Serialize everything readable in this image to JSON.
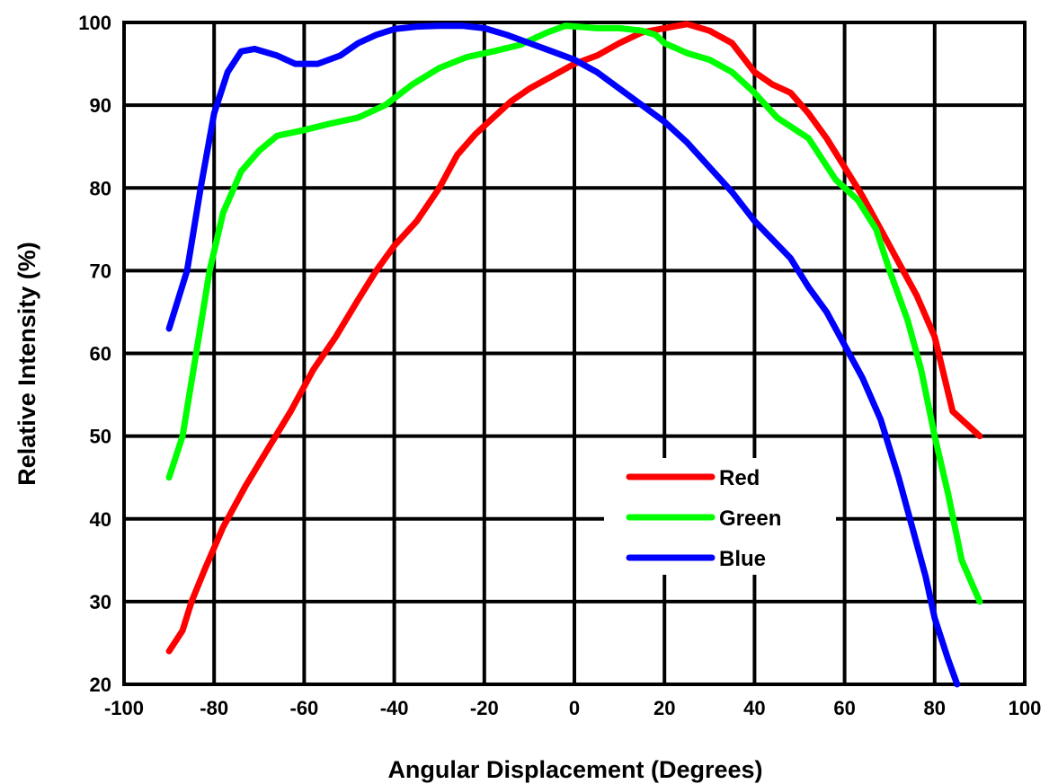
{
  "chart_data": {
    "type": "line",
    "xlabel": "Angular Displacement (Degrees)",
    "ylabel": "Relative Intensity (%)",
    "xlim": [
      -100,
      100
    ],
    "ylim": [
      20,
      100
    ],
    "xticks": [
      "-100",
      "-80",
      "-60",
      "-40",
      "-20",
      "0",
      "20",
      "40",
      "60",
      "80",
      "100"
    ],
    "yticks": [
      "20",
      "30",
      "40",
      "50",
      "60",
      "70",
      "80",
      "90",
      "100"
    ],
    "grid": true,
    "legend_position": "lower-center-right",
    "series": [
      {
        "name": "Red",
        "color": "#ff0000",
        "points": [
          [
            -90,
            24
          ],
          [
            -87,
            26.5
          ],
          [
            -85,
            30
          ],
          [
            -82,
            34
          ],
          [
            -78,
            39
          ],
          [
            -73,
            44
          ],
          [
            -68,
            48.5
          ],
          [
            -63,
            53
          ],
          [
            -58,
            58
          ],
          [
            -53,
            62
          ],
          [
            -48,
            66.5
          ],
          [
            -44,
            70
          ],
          [
            -40,
            73
          ],
          [
            -35,
            76
          ],
          [
            -30,
            80
          ],
          [
            -26,
            84
          ],
          [
            -22,
            86.5
          ],
          [
            -18,
            88.5
          ],
          [
            -14,
            90.5
          ],
          [
            -10,
            92
          ],
          [
            -5,
            93.5
          ],
          [
            0,
            95
          ],
          [
            5,
            96
          ],
          [
            10,
            97.5
          ],
          [
            15,
            98.8
          ],
          [
            20,
            99.3
          ],
          [
            25,
            99.8
          ],
          [
            30,
            99
          ],
          [
            35,
            97.5
          ],
          [
            40,
            94
          ],
          [
            44,
            92.5
          ],
          [
            48,
            91.5
          ],
          [
            52,
            89
          ],
          [
            56,
            86
          ],
          [
            60,
            82.5
          ],
          [
            64,
            79
          ],
          [
            68,
            75
          ],
          [
            72,
            71
          ],
          [
            76,
            67
          ],
          [
            80,
            62
          ],
          [
            84,
            53
          ],
          [
            87,
            51.5
          ],
          [
            90,
            50
          ]
        ]
      },
      {
        "name": "Green",
        "color": "#00ff00",
        "points": [
          [
            -90,
            45
          ],
          [
            -87,
            50
          ],
          [
            -84,
            60
          ],
          [
            -81,
            70
          ],
          [
            -78,
            77
          ],
          [
            -74,
            82
          ],
          [
            -70,
            84.5
          ],
          [
            -66,
            86.3
          ],
          [
            -60,
            87
          ],
          [
            -54,
            87.8
          ],
          [
            -48,
            88.5
          ],
          [
            -42,
            90
          ],
          [
            -36,
            92.5
          ],
          [
            -30,
            94.5
          ],
          [
            -24,
            95.8
          ],
          [
            -18,
            96.5
          ],
          [
            -12,
            97.3
          ],
          [
            -6,
            98.8
          ],
          [
            -2,
            99.6
          ],
          [
            5,
            99.3
          ],
          [
            10,
            99.3
          ],
          [
            15,
            99
          ],
          [
            18,
            98.5
          ],
          [
            20,
            97.5
          ],
          [
            25,
            96.3
          ],
          [
            30,
            95.5
          ],
          [
            35,
            94
          ],
          [
            40,
            91.5
          ],
          [
            45,
            88.5
          ],
          [
            52,
            86
          ],
          [
            58,
            81
          ],
          [
            63,
            78.5
          ],
          [
            67,
            75
          ],
          [
            70,
            70
          ],
          [
            74,
            64
          ],
          [
            77,
            58
          ],
          [
            80,
            50
          ],
          [
            83,
            43
          ],
          [
            86,
            35
          ],
          [
            88,
            32.5
          ],
          [
            90,
            30
          ]
        ]
      },
      {
        "name": "Blue",
        "color": "#0000ff",
        "points": [
          [
            -90,
            63
          ],
          [
            -86,
            70
          ],
          [
            -83,
            80
          ],
          [
            -80,
            89
          ],
          [
            -77,
            94
          ],
          [
            -74,
            96.5
          ],
          [
            -71,
            96.8
          ],
          [
            -66,
            96
          ],
          [
            -62,
            95
          ],
          [
            -57,
            95
          ],
          [
            -52,
            96
          ],
          [
            -48,
            97.5
          ],
          [
            -44,
            98.5
          ],
          [
            -40,
            99.2
          ],
          [
            -35,
            99.5
          ],
          [
            -30,
            99.6
          ],
          [
            -25,
            99.6
          ],
          [
            -20,
            99.3
          ],
          [
            -15,
            98.5
          ],
          [
            -10,
            97.5
          ],
          [
            -5,
            96.5
          ],
          [
            0,
            95.5
          ],
          [
            5,
            94
          ],
          [
            10,
            92
          ],
          [
            15,
            90
          ],
          [
            20,
            88
          ],
          [
            25,
            85.5
          ],
          [
            30,
            82.5
          ],
          [
            35,
            79.5
          ],
          [
            40,
            76
          ],
          [
            48,
            71.5
          ],
          [
            52,
            68
          ],
          [
            56,
            65
          ],
          [
            60,
            61
          ],
          [
            64,
            57
          ],
          [
            68,
            52
          ],
          [
            72,
            45
          ],
          [
            75,
            39
          ],
          [
            78,
            33
          ],
          [
            80,
            28
          ],
          [
            83,
            23
          ],
          [
            85,
            20
          ]
        ]
      }
    ]
  }
}
